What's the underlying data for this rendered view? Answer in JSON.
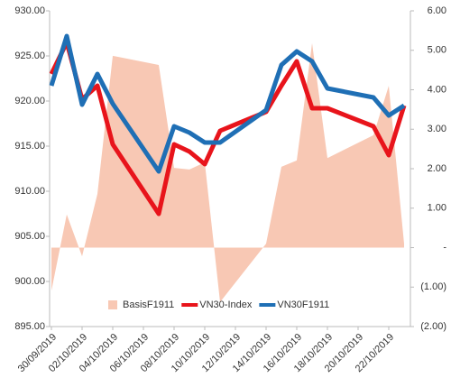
{
  "chart_data": {
    "type": "line",
    "x": [
      "30/09/2019",
      "01/10/2019",
      "02/10/2019",
      "03/10/2019",
      "04/10/2019",
      "07/10/2019",
      "08/10/2019",
      "09/10/2019",
      "10/10/2019",
      "11/10/2019",
      "14/10/2019",
      "15/10/2019",
      "16/10/2019",
      "17/10/2019",
      "18/10/2019",
      "21/10/2019",
      "22/10/2019",
      "23/10/2019"
    ],
    "xlim": [
      "30/09/2019",
      "23/10/2019"
    ],
    "xticks": [
      "30/09/2019",
      "02/10/2019",
      "04/10/2019",
      "06/10/2019",
      "08/10/2019",
      "10/10/2019",
      "12/10/2019",
      "14/10/2019",
      "16/10/2019",
      "18/10/2019",
      "20/10/2019",
      "22/10/2019"
    ],
    "ylim": [
      895,
      930
    ],
    "yticks": [
      {
        "value": 895,
        "label": "895.00"
      },
      {
        "value": 900,
        "label": "900.00"
      },
      {
        "value": 905,
        "label": "905.00"
      },
      {
        "value": 910,
        "label": "910.00"
      },
      {
        "value": 915,
        "label": "915.00"
      },
      {
        "value": 920,
        "label": "920.00"
      },
      {
        "value": 925,
        "label": "925.00"
      },
      {
        "value": 930,
        "label": "930.00"
      }
    ],
    "y2lim": [
      -2,
      6
    ],
    "y2ticks": [
      {
        "value": -2,
        "label": "(2.00)"
      },
      {
        "value": -1,
        "label": "(1.00)"
      },
      {
        "value": 0,
        "label": "-"
      },
      {
        "value": 1,
        "label": "1.00"
      },
      {
        "value": 2,
        "label": "2.00"
      },
      {
        "value": 3,
        "label": "3.00"
      },
      {
        "value": 4,
        "label": "4.00"
      },
      {
        "value": 5,
        "label": "5.00"
      },
      {
        "value": 6,
        "label": "6.00"
      }
    ],
    "legend": "bottom",
    "series": [
      {
        "name": "BasisF1911",
        "type": "area",
        "axis": "y2",
        "color": "#f8c8b4",
        "values": [
          -1.09,
          0.84,
          -0.22,
          1.36,
          4.86,
          4.63,
          2.02,
          1.98,
          2.16,
          -1.38,
          0.1,
          2.05,
          2.21,
          5.18,
          2.27,
          2.85,
          4.1,
          0.1
        ]
      },
      {
        "name": "VN30-Index",
        "type": "line",
        "color": "#e8141b",
        "values": [
          923.0,
          926.5,
          920.2,
          921.7,
          915.2,
          907.5,
          915.2,
          914.4,
          913.0,
          916.7,
          918.8,
          921.7,
          924.4,
          919.2,
          919.2,
          917.2,
          914.0,
          919.5
        ]
      },
      {
        "name": "VN30F1911",
        "type": "line",
        "color": "#1f6fb5",
        "values": [
          921.7,
          927.2,
          919.6,
          923.0,
          919.7,
          912.2,
          917.2,
          916.5,
          915.4,
          915.4,
          919.0,
          924.0,
          925.5,
          924.4,
          921.4,
          920.4,
          918.4,
          919.5
        ]
      }
    ]
  }
}
